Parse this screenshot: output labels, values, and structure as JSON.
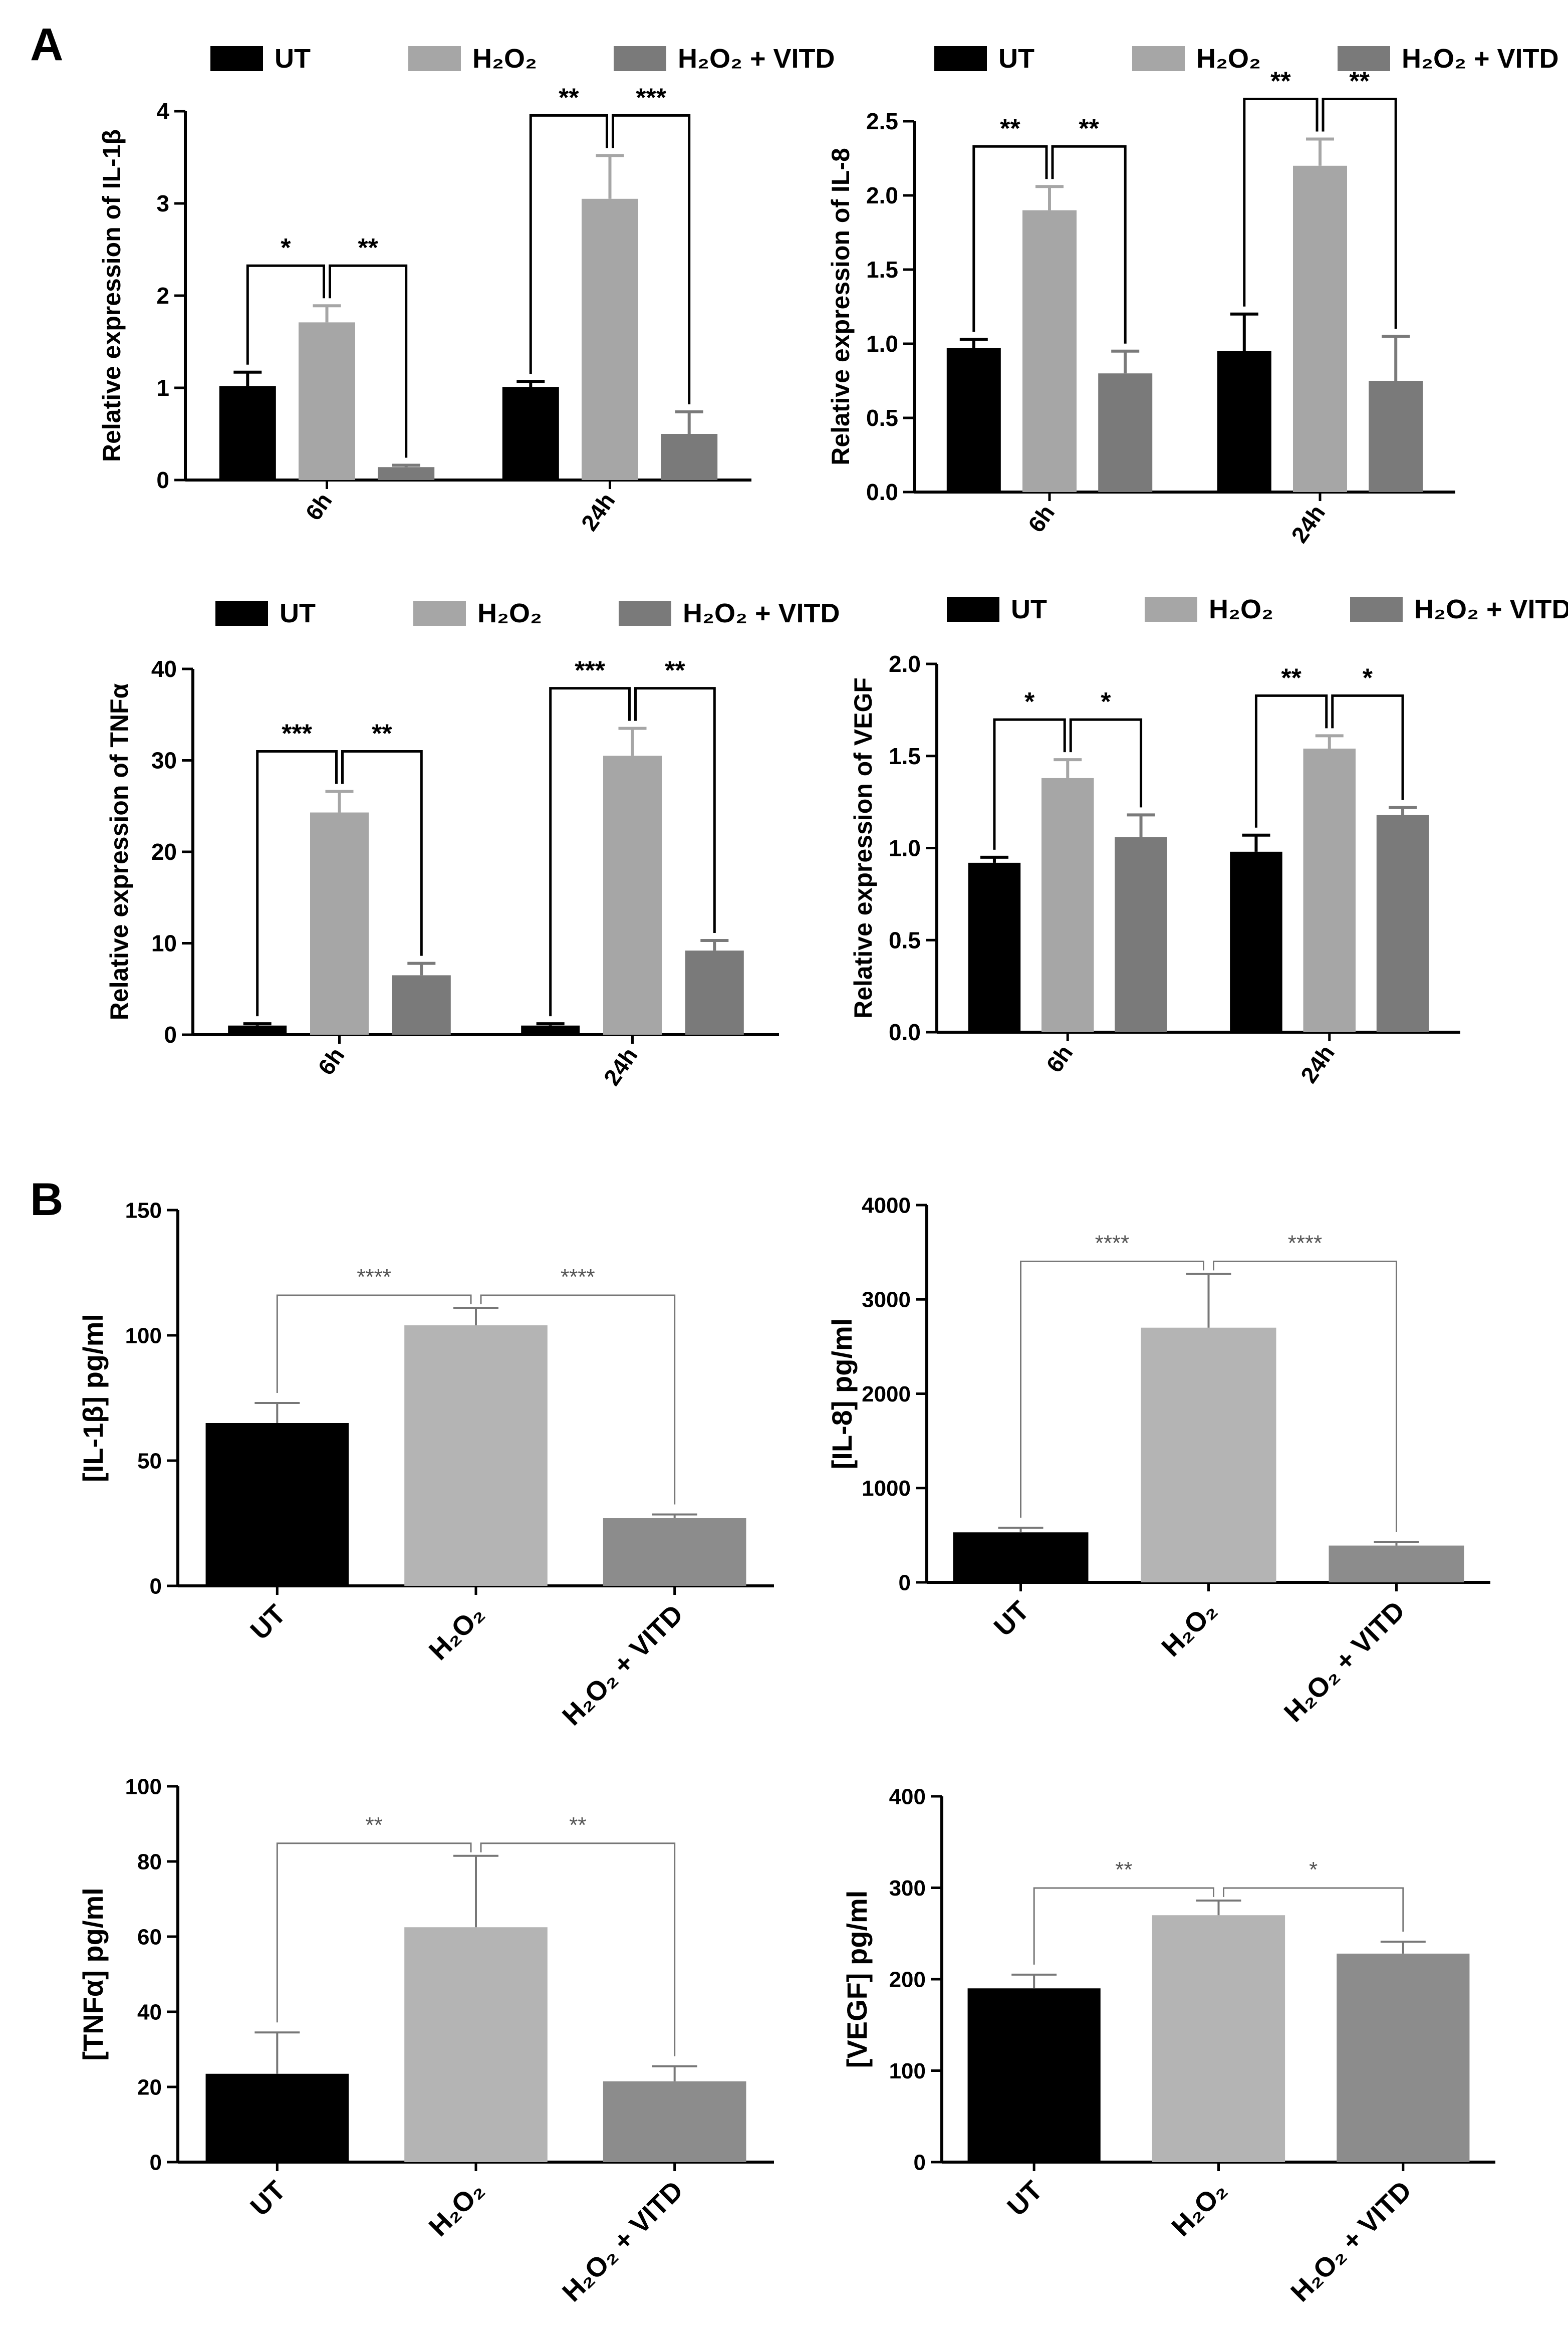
{
  "panels": {
    "A": "A",
    "B": "B"
  },
  "colors": {
    "ut": "#000000",
    "h2o2": "#a6a6a6",
    "h2o2_vitd": "#7a7a7a",
    "b_h2o2": "#b4b4b4",
    "b_h2o2_vitd": "#8c8c8c",
    "b_sig": "#777777"
  },
  "chart_data": [
    {
      "id": "A1",
      "type": "bar",
      "panel": "A",
      "ylabel": "Relative expression of IL-1β",
      "ylim": [
        0,
        4
      ],
      "yticks": [
        "0",
        "1",
        "2",
        "3",
        "4"
      ],
      "categories": [
        "6h",
        "24h"
      ],
      "legend": [
        {
          "name": "UT"
        },
        {
          "name": "H₂O₂"
        },
        {
          "name": "H₂O₂ + VITD"
        }
      ],
      "series": [
        {
          "name": "UT",
          "values": [
            1.02,
            1.01
          ],
          "errors": [
            0.15,
            0.06
          ]
        },
        {
          "name": "H₂O₂",
          "values": [
            1.71,
            3.05
          ],
          "errors": [
            0.18,
            0.47
          ]
        },
        {
          "name": "H₂O₂ + VITD",
          "values": [
            0.14,
            0.5
          ],
          "errors": [
            0.02,
            0.24
          ]
        }
      ],
      "significance": [
        {
          "group": 0,
          "from": 0,
          "to": 1,
          "label": "*"
        },
        {
          "group": 0,
          "from": 1,
          "to": 2,
          "label": "**"
        },
        {
          "group": 1,
          "from": 0,
          "to": 1,
          "label": "**"
        },
        {
          "group": 1,
          "from": 1,
          "to": 2,
          "label": "***"
        }
      ]
    },
    {
      "id": "A2",
      "type": "bar",
      "panel": "A",
      "ylabel": "Relative expression of IL-8",
      "ylim": [
        0,
        2.5
      ],
      "yticks": [
        "0.0",
        "0.5",
        "1.0",
        "1.5",
        "2.0",
        "2.5"
      ],
      "categories": [
        "6h",
        "24h"
      ],
      "legend": [
        {
          "name": "UT"
        },
        {
          "name": "H₂O₂"
        },
        {
          "name": "H₂O₂ + VITD"
        }
      ],
      "series": [
        {
          "name": "UT",
          "values": [
            0.97,
            0.95
          ],
          "errors": [
            0.06,
            0.25
          ]
        },
        {
          "name": "H₂O₂",
          "values": [
            1.9,
            2.2
          ],
          "errors": [
            0.16,
            0.18
          ]
        },
        {
          "name": "H₂O₂ + VITD",
          "values": [
            0.8,
            0.75
          ],
          "errors": [
            0.15,
            0.3
          ]
        }
      ],
      "significance": [
        {
          "group": 0,
          "from": 0,
          "to": 1,
          "label": "**"
        },
        {
          "group": 0,
          "from": 1,
          "to": 2,
          "label": "**"
        },
        {
          "group": 1,
          "from": 0,
          "to": 1,
          "label": "**"
        },
        {
          "group": 1,
          "from": 1,
          "to": 2,
          "label": "**"
        }
      ]
    },
    {
      "id": "A3",
      "type": "bar",
      "panel": "A",
      "ylabel": "Relative expression of TNFα",
      "ylim": [
        0,
        40
      ],
      "yticks": [
        "0",
        "10",
        "20",
        "30",
        "40"
      ],
      "categories": [
        "6h",
        "24h"
      ],
      "legend": [
        {
          "name": "UT"
        },
        {
          "name": "H₂O₂"
        },
        {
          "name": "H₂O₂ + VITD"
        }
      ],
      "series": [
        {
          "name": "UT",
          "values": [
            1.0,
            1.0
          ],
          "errors": [
            0.2,
            0.2
          ]
        },
        {
          "name": "H₂O₂",
          "values": [
            24.3,
            30.5
          ],
          "errors": [
            2.3,
            3.0
          ]
        },
        {
          "name": "H₂O₂ + VITD",
          "values": [
            6.5,
            9.2
          ],
          "errors": [
            1.3,
            1.1
          ]
        }
      ],
      "significance": [
        {
          "group": 0,
          "from": 0,
          "to": 1,
          "label": "***"
        },
        {
          "group": 0,
          "from": 1,
          "to": 2,
          "label": "**"
        },
        {
          "group": 1,
          "from": 0,
          "to": 1,
          "label": "***"
        },
        {
          "group": 1,
          "from": 1,
          "to": 2,
          "label": "**"
        }
      ]
    },
    {
      "id": "A4",
      "type": "bar",
      "panel": "A",
      "ylabel": "Relative expression of VEGF",
      "ylim": [
        0,
        2.0
      ],
      "yticks": [
        "0.0",
        "0.5",
        "1.0",
        "1.5",
        "2.0"
      ],
      "categories": [
        "6h",
        "24h"
      ],
      "legend": [
        {
          "name": "UT"
        },
        {
          "name": "H₂O₂"
        },
        {
          "name": "H₂O₂ + VITD"
        }
      ],
      "series": [
        {
          "name": "UT",
          "values": [
            0.92,
            0.98
          ],
          "errors": [
            0.03,
            0.09
          ]
        },
        {
          "name": "H₂O₂",
          "values": [
            1.38,
            1.54
          ],
          "errors": [
            0.1,
            0.07
          ]
        },
        {
          "name": "H₂O₂ + VITD",
          "values": [
            1.06,
            1.18
          ],
          "errors": [
            0.12,
            0.04
          ]
        }
      ],
      "significance": [
        {
          "group": 0,
          "from": 0,
          "to": 1,
          "label": "*"
        },
        {
          "group": 0,
          "from": 1,
          "to": 2,
          "label": "*"
        },
        {
          "group": 1,
          "from": 0,
          "to": 1,
          "label": "**"
        },
        {
          "group": 1,
          "from": 1,
          "to": 2,
          "label": "*"
        }
      ]
    },
    {
      "id": "B1",
      "type": "bar",
      "panel": "B",
      "ylabel": "[IL-1β] pg/ml",
      "ylim": [
        0,
        150
      ],
      "yticks": [
        "0",
        "50",
        "100",
        "150"
      ],
      "categories": [
        "UT",
        "H₂O₂",
        "H₂O₂ + VITD"
      ],
      "values": [
        65,
        104,
        27
      ],
      "errors": [
        8,
        7,
        1.5
      ],
      "significance": [
        {
          "from": 0,
          "to": 1,
          "label": "****"
        },
        {
          "from": 1,
          "to": 2,
          "label": "****"
        }
      ]
    },
    {
      "id": "B2",
      "type": "bar",
      "panel": "B",
      "ylabel": "[IL-8] pg/ml",
      "ylim": [
        0,
        4000
      ],
      "yticks": [
        "0",
        "1000",
        "2000",
        "3000",
        "4000"
      ],
      "categories": [
        "UT",
        "H₂O₂",
        "H₂O₂ + VITD"
      ],
      "values": [
        530,
        2700,
        390
      ],
      "errors": [
        50,
        570,
        40
      ],
      "significance": [
        {
          "from": 0,
          "to": 1,
          "label": "****"
        },
        {
          "from": 1,
          "to": 2,
          "label": "****"
        }
      ]
    },
    {
      "id": "B3",
      "type": "bar",
      "panel": "B",
      "ylabel": "[TNFα] pg/ml",
      "ylim": [
        0,
        100
      ],
      "yticks": [
        "0",
        "20",
        "40",
        "60",
        "80",
        "100"
      ],
      "categories": [
        "UT",
        "H₂O₂",
        "H₂O₂ + VITD"
      ],
      "values": [
        23.5,
        62.5,
        21.5
      ],
      "errors": [
        11,
        19,
        4
      ],
      "significance": [
        {
          "from": 0,
          "to": 1,
          "label": "**"
        },
        {
          "from": 1,
          "to": 2,
          "label": "**"
        }
      ]
    },
    {
      "id": "B4",
      "type": "bar",
      "panel": "B",
      "ylabel": "[VEGF] pg/ml",
      "ylim": [
        0,
        400
      ],
      "yticks": [
        "0",
        "100",
        "200",
        "300",
        "400"
      ],
      "categories": [
        "UT",
        "H₂O₂",
        "H₂O₂ + VITD"
      ],
      "values": [
        190,
        270,
        228
      ],
      "errors": [
        15,
        16,
        13
      ],
      "significance": [
        {
          "from": 0,
          "to": 1,
          "label": "**"
        },
        {
          "from": 1,
          "to": 2,
          "label": "*"
        }
      ]
    }
  ]
}
